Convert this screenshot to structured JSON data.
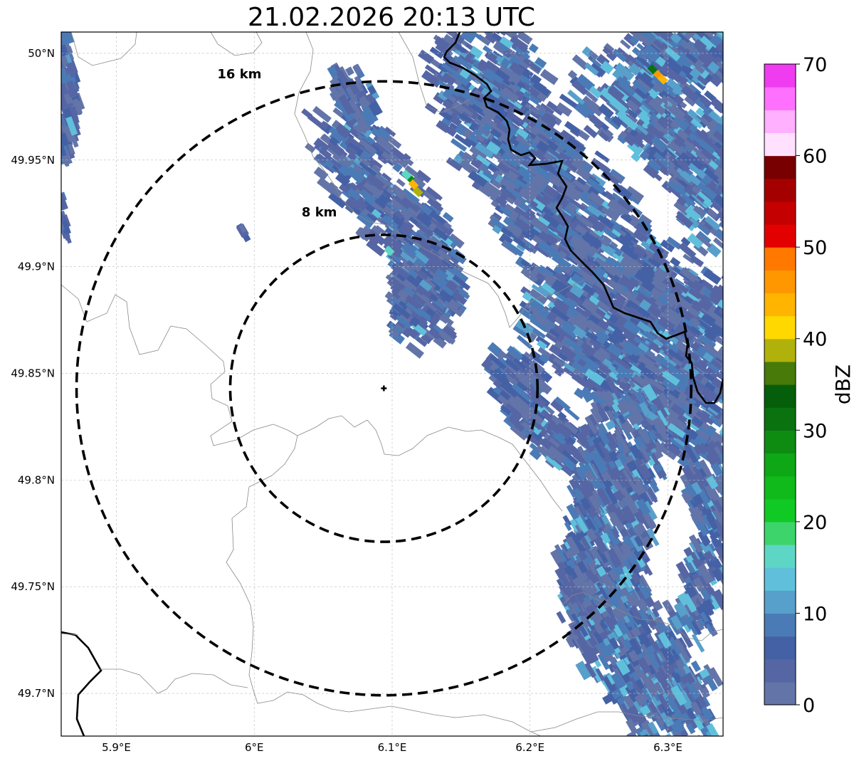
{
  "title": "21.02.2026 20:13 UTC",
  "map": {
    "lon_range": [
      5.86,
      6.34
    ],
    "lat_range": [
      49.68,
      50.01
    ],
    "x_ticks": [
      {
        "value": 5.9,
        "label": "5.9°E"
      },
      {
        "value": 6.0,
        "label": "6°E"
      },
      {
        "value": 6.1,
        "label": "6.1°E"
      },
      {
        "value": 6.2,
        "label": "6.2°E"
      },
      {
        "value": 6.3,
        "label": "6.3°E"
      }
    ],
    "y_ticks": [
      {
        "value": 50.0,
        "label": "50°N"
      },
      {
        "value": 49.95,
        "label": "49.95°N"
      },
      {
        "value": 49.9,
        "label": "49.9°N"
      },
      {
        "value": 49.85,
        "label": "49.85°N"
      },
      {
        "value": 49.8,
        "label": "49.8°N"
      },
      {
        "value": 49.75,
        "label": "49.75°N"
      },
      {
        "value": 49.7,
        "label": "49.7°N"
      }
    ],
    "radar_site": {
      "lon": 6.094,
      "lat": 49.843
    },
    "range_rings": [
      {
        "radius_km": 8,
        "label": "8 km"
      },
      {
        "radius_km": 16,
        "label": "16 km"
      }
    ]
  },
  "colorbar": {
    "label": "dBZ",
    "min": 0,
    "max": 70,
    "ticks": [
      0,
      10,
      20,
      30,
      40,
      50,
      60,
      70
    ],
    "colors": [
      "#6374a8",
      "#5666a4",
      "#4561a6",
      "#4b7bb6",
      "#57a0cb",
      "#60c0dc",
      "#5ed6c6",
      "#3dd46c",
      "#11c924",
      "#0fba1a",
      "#0ea716",
      "#0e8c12",
      "#0b7210",
      "#055e0a",
      "#477a09",
      "#b0b10a",
      "#ffd800",
      "#ffb400",
      "#ff9700",
      "#ff7800",
      "#e20000",
      "#c40000",
      "#a50000",
      "#780000",
      "#ffe0ff",
      "#ffb0ff",
      "#ff70ff",
      "#f03cf0"
    ]
  },
  "colors": {
    "border_national": "#000000",
    "border_regional": "#777777",
    "grid": "#bbbbbb",
    "ring": "#000000"
  }
}
